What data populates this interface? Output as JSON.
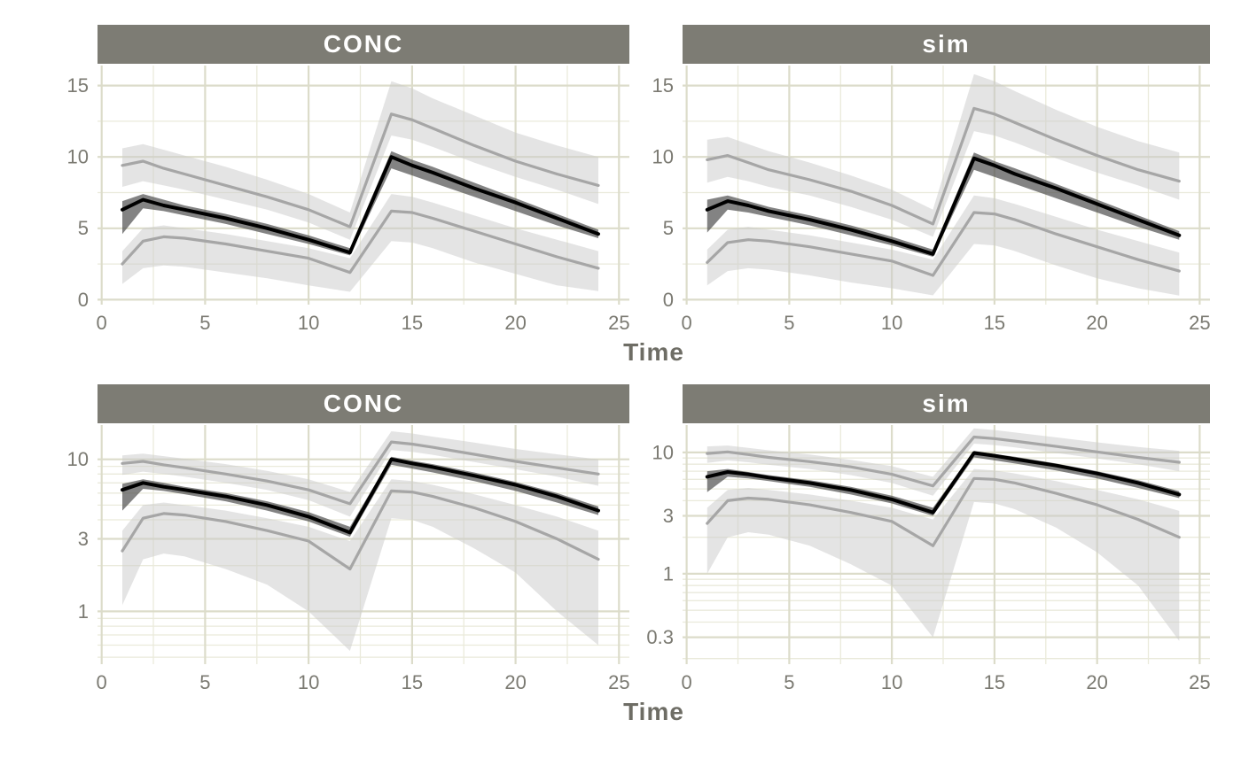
{
  "figure": {
    "description": "Two stacked faceted concentration-time plots (linear scale top, log scale bottom), facets CONC and sim, each with median line, median confidence ribbon, and 5th/95th percentile lines with confidence ribbons."
  },
  "colors": {
    "strip_bg": "#7d7c74",
    "strip_text": "#ffffff",
    "grid_major": "#dcdcca",
    "grid_minor": "#eaeadb",
    "axis_text": "#7b7a72",
    "axis_title": "#6e6d65",
    "median_line": "#000000",
    "median_ribbon": "#4f4f4f",
    "median_ribbon_opacity": 0.7,
    "outer_line": "#a6a6a6",
    "outer_ribbon": "#c9c9c9",
    "outer_ribbon_opacity": 0.5
  },
  "chart_data": {
    "type": "line",
    "xlabel": "Time",
    "x": [
      1,
      2,
      3,
      4,
      6,
      8,
      10,
      12,
      14,
      15,
      16,
      18,
      20,
      22,
      24
    ],
    "xlim": [
      -0.2,
      25.5
    ],
    "xticks": [
      0,
      5,
      10,
      15,
      20,
      25
    ],
    "xminor": [
      2.5,
      7.5,
      12.5,
      17.5,
      22.5
    ],
    "rows": [
      {
        "yscale": "linear",
        "panels": [
          {
            "ylim": [
              -0.35,
              16.4
            ],
            "yticks": [
              0,
              5,
              10,
              15
            ],
            "yminor": [
              2.5,
              7.5,
              12.5
            ]
          },
          {
            "ylim": [
              -0.35,
              16.4
            ],
            "yticks": [
              0,
              5,
              10,
              15
            ],
            "yminor": [
              2.5,
              7.5,
              12.5
            ]
          }
        ]
      },
      {
        "yscale": "log",
        "panels": [
          {
            "ylim": [
              0.45,
              16.8
            ],
            "yticks": [
              1,
              3,
              10
            ]
          },
          {
            "ylim": [
              0.18,
              16.8
            ],
            "yticks": [
              0.3,
              1,
              3,
              10
            ]
          }
        ]
      }
    ],
    "facets": [
      {
        "label": "CONC",
        "series": {
          "p95": {
            "line": [
              9.4,
              9.7,
              9.2,
              8.8,
              8.0,
              7.2,
              6.3,
              5.1,
              13.0,
              12.6,
              12.0,
              10.8,
              9.7,
              8.8,
              8.0
            ],
            "lo": [
              7.9,
              8.3,
              8.0,
              7.7,
              7.0,
              6.3,
              5.4,
              4.2,
              11.5,
              11.2,
              10.7,
              9.6,
              8.6,
              7.7,
              6.7
            ],
            "hi": [
              10.6,
              10.9,
              10.5,
              10.1,
              9.3,
              8.4,
              7.4,
              6.1,
              15.3,
              14.8,
              14.1,
              12.9,
              11.7,
              10.8,
              10.0
            ]
          },
          "p5": {
            "line": [
              2.5,
              4.1,
              4.4,
              4.3,
              3.9,
              3.4,
              2.9,
              1.9,
              6.2,
              6.1,
              5.7,
              4.8,
              3.9,
              3.0,
              2.2
            ],
            "lo": [
              1.1,
              2.2,
              2.4,
              2.3,
              1.9,
              1.5,
              1.0,
              0.55,
              4.1,
              4.0,
              3.6,
              2.6,
              1.8,
              1.0,
              0.6
            ],
            "hi": [
              3.4,
              5.0,
              5.2,
              5.0,
              4.6,
              4.1,
              3.6,
              2.9,
              7.4,
              7.2,
              6.8,
              5.9,
              5.0,
              4.2,
              3.4
            ]
          },
          "median": {
            "line": [
              6.3,
              7.0,
              6.6,
              6.3,
              5.7,
              5.0,
              4.2,
              3.3,
              10.0,
              9.4,
              8.9,
              7.8,
              6.8,
              5.7,
              4.6
            ],
            "lo": [
              4.6,
              6.4,
              6.2,
              5.9,
              5.3,
              4.6,
              3.9,
              3.1,
              9.2,
              8.7,
              8.2,
              7.2,
              6.2,
              5.2,
              4.3
            ],
            "hi": [
              6.9,
              7.4,
              7.0,
              6.6,
              6.0,
              5.3,
              4.5,
              3.6,
              10.4,
              9.8,
              9.3,
              8.2,
              7.1,
              6.0,
              4.9
            ]
          }
        }
      },
      {
        "label": "sim",
        "series": {
          "p95": {
            "line": [
              9.8,
              10.1,
              9.6,
              9.1,
              8.4,
              7.6,
              6.6,
              5.3,
              13.4,
              13.0,
              12.4,
              11.2,
              10.1,
              9.1,
              8.3
            ],
            "lo": [
              8.2,
              8.6,
              8.3,
              7.9,
              7.3,
              6.5,
              5.6,
              4.4,
              11.8,
              11.5,
              11.0,
              9.9,
              8.9,
              8.0,
              7.0
            ],
            "hi": [
              11.2,
              11.4,
              10.9,
              10.4,
              9.6,
              8.7,
              7.7,
              6.3,
              15.8,
              15.3,
              14.6,
              13.3,
              12.1,
              11.1,
              10.3
            ]
          },
          "p5": {
            "line": [
              2.6,
              4.0,
              4.2,
              4.1,
              3.7,
              3.2,
              2.7,
              1.7,
              6.1,
              6.0,
              5.6,
              4.6,
              3.7,
              2.8,
              2.0
            ],
            "lo": [
              1.0,
              2.0,
              2.2,
              2.1,
              1.7,
              1.2,
              0.8,
              0.3,
              3.9,
              3.8,
              3.4,
              2.4,
              1.5,
              0.8,
              0.28
            ],
            "hi": [
              3.5,
              4.9,
              5.1,
              4.9,
              4.5,
              4.0,
              3.5,
              2.8,
              7.3,
              7.1,
              6.7,
              5.8,
              4.9,
              4.1,
              3.3
            ]
          },
          "median": {
            "line": [
              6.3,
              6.9,
              6.6,
              6.2,
              5.6,
              4.9,
              4.1,
              3.2,
              9.9,
              9.4,
              8.8,
              7.8,
              6.7,
              5.6,
              4.5
            ],
            "lo": [
              4.7,
              6.3,
              6.1,
              5.8,
              5.2,
              4.5,
              3.8,
              3.0,
              9.1,
              8.6,
              8.1,
              7.1,
              6.1,
              5.1,
              4.2
            ],
            "hi": [
              7.0,
              7.3,
              6.9,
              6.5,
              5.9,
              5.2,
              4.4,
              3.5,
              10.3,
              9.7,
              9.2,
              8.1,
              7.0,
              5.9,
              4.8
            ]
          }
        }
      }
    ]
  }
}
